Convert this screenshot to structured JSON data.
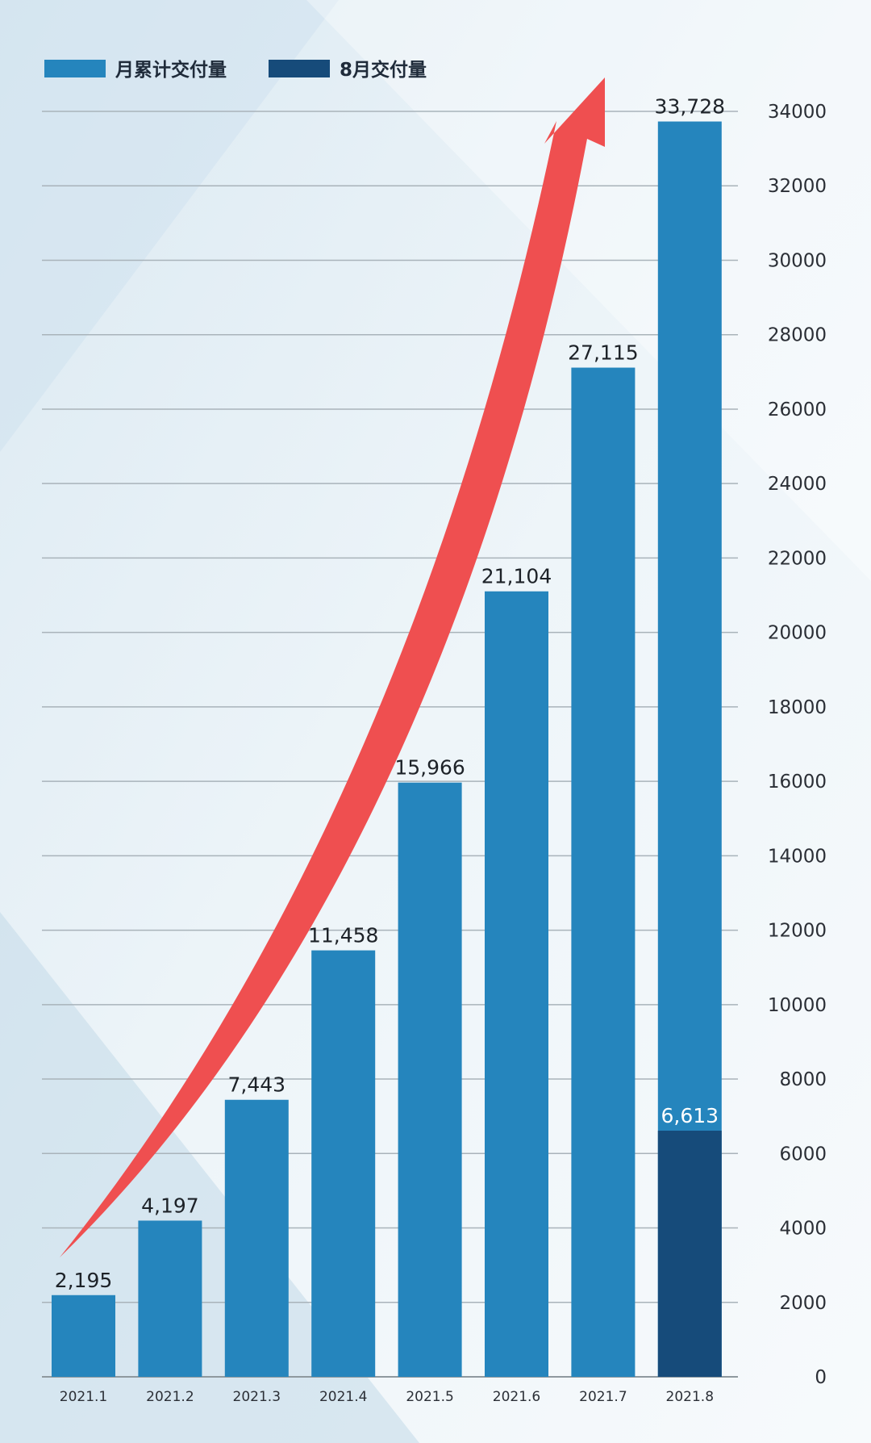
{
  "legend": {
    "cumulative_label": "月累计交付量",
    "august_label": "8月交付量"
  },
  "colors": {
    "cumulative": "#2585bd",
    "august": "#164b7a",
    "arrow": "#ef4f50",
    "grid": "#a9b3ba"
  },
  "chart_data": {
    "type": "bar",
    "categories": [
      "2021.1",
      "2021.2",
      "2021.3",
      "2021.4",
      "2021.5",
      "2021.6",
      "2021.7",
      "2021.8"
    ],
    "series": [
      {
        "name": "月累计交付量",
        "values": [
          2195,
          4197,
          7443,
          11458,
          15966,
          21104,
          27115,
          33728
        ],
        "labels": [
          "2,195",
          "4,197",
          "7,443",
          "11,458",
          "15,966",
          "21,104",
          "27,115",
          "33,728"
        ]
      },
      {
        "name": "8月交付量",
        "values": [
          null,
          null,
          null,
          null,
          null,
          null,
          null,
          6613
        ],
        "labels": [
          "",
          "",
          "",
          "",
          "",
          "",
          "",
          "6,613"
        ]
      }
    ],
    "yticks": [
      "0",
      "2000",
      "4000",
      "6000",
      "8000",
      "10000",
      "12000",
      "14000",
      "16000",
      "18000",
      "20000",
      "22000",
      "24000",
      "26000",
      "28000",
      "30000",
      "32000",
      "34000"
    ],
    "ylim": [
      0,
      34000
    ],
    "y_axis_side": "right",
    "grid": true,
    "legend_position": "top-left",
    "annotation": "red upward arrow indicating growth trend"
  }
}
